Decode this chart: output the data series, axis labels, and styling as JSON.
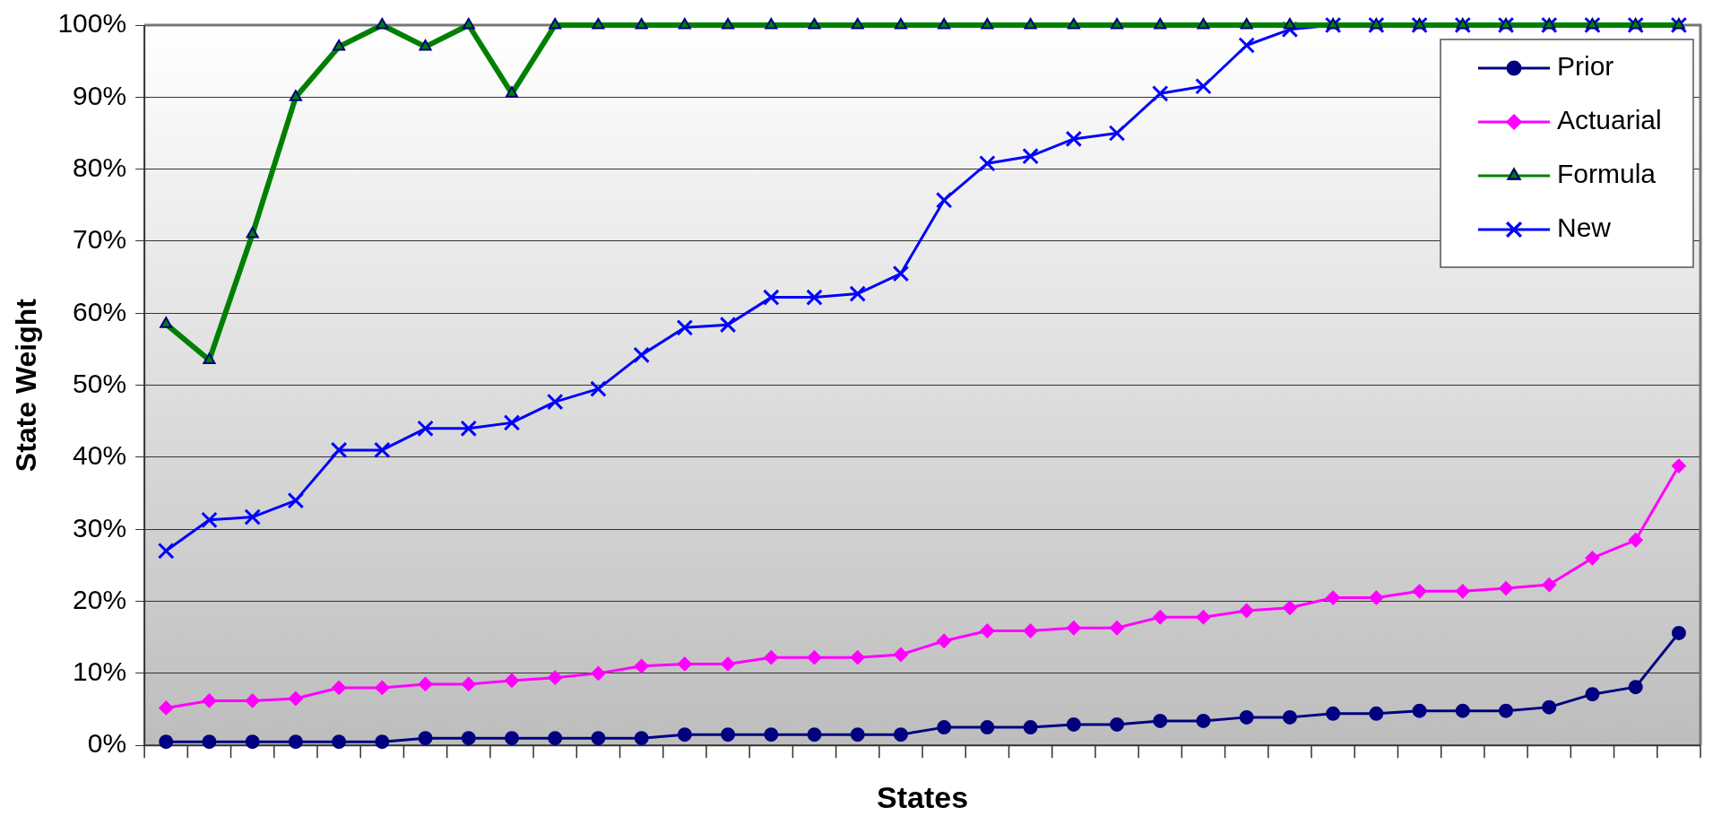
{
  "chart_data": {
    "type": "line",
    "xlabel": "States",
    "ylabel": "State Weight",
    "categories": [
      null,
      null,
      null,
      null,
      null,
      null,
      null,
      null,
      null,
      null,
      null,
      null,
      null,
      null,
      null,
      null,
      null,
      null,
      null,
      null,
      null,
      null,
      null,
      null,
      null,
      null,
      null,
      null,
      null,
      null,
      null,
      null,
      null,
      null,
      null,
      null
    ],
    "ylim": [
      0,
      100
    ],
    "yticks": [
      {
        "value": 0,
        "label": "0%"
      },
      {
        "value": 10,
        "label": "10%"
      },
      {
        "value": 20,
        "label": "20%"
      },
      {
        "value": 30,
        "label": "30%"
      },
      {
        "value": 40,
        "label": "40%"
      },
      {
        "value": 50,
        "label": "50%"
      },
      {
        "value": 60,
        "label": "60%"
      },
      {
        "value": 70,
        "label": "70%"
      },
      {
        "value": 80,
        "label": "80%"
      },
      {
        "value": 90,
        "label": "90%"
      },
      {
        "value": 100,
        "label": "100%"
      }
    ],
    "grid": "y",
    "legend": "top right",
    "tick_labels": "y",
    "line_style": "solid",
    "series": [
      {
        "name": "Prior",
        "color": "#000080",
        "marker": "circle",
        "values": [
          0.5,
          0.5,
          0.5,
          0.5,
          0.5,
          0.5,
          1.0,
          1.0,
          1.0,
          1.0,
          1.0,
          1.0,
          1.5,
          1.5,
          1.5,
          1.5,
          1.5,
          1.5,
          2.5,
          2.5,
          2.5,
          2.9,
          2.9,
          3.4,
          3.4,
          3.9,
          3.9,
          4.4,
          4.4,
          4.8,
          4.8,
          4.8,
          5.3,
          7.1,
          8.1,
          15.6
        ]
      },
      {
        "name": "Actuarial",
        "color": "#ff00ff",
        "marker": "diamond",
        "values": [
          5.2,
          6.2,
          6.2,
          6.5,
          8,
          8,
          8.5,
          8.5,
          9,
          9.4,
          10,
          11,
          11.3,
          11.3,
          12.2,
          12.2,
          12.2,
          12.6,
          14.5,
          15.9,
          15.9,
          16.3,
          16.3,
          17.8,
          17.8,
          18.7,
          19.1,
          20.5,
          20.5,
          21.4,
          21.4,
          21.8,
          22.3,
          26,
          28.5,
          38.8
        ]
      },
      {
        "name": "Formula",
        "color": "#008000",
        "marker": "triangle",
        "values": [
          58.5,
          53.5,
          71,
          90,
          97,
          100,
          97,
          100,
          90.5,
          100,
          100,
          100,
          100,
          100,
          100,
          100,
          100,
          100,
          100,
          100,
          100,
          100,
          100,
          100,
          100,
          100,
          100,
          100,
          100,
          100,
          100,
          100,
          100,
          100,
          100,
          100
        ]
      },
      {
        "name": "New",
        "color": "#0000ff",
        "marker": "cross",
        "values": [
          27,
          31.3,
          31.7,
          34,
          41,
          41,
          44,
          44,
          44.8,
          47.7,
          49.5,
          54.2,
          58,
          58.4,
          62.2,
          62.2,
          62.7,
          65.5,
          75.7,
          80.8,
          81.8,
          84.2,
          85,
          90.5,
          91.5,
          97.2,
          99.4,
          100,
          100,
          100,
          100,
          100,
          100,
          100,
          100,
          100
        ]
      }
    ]
  }
}
